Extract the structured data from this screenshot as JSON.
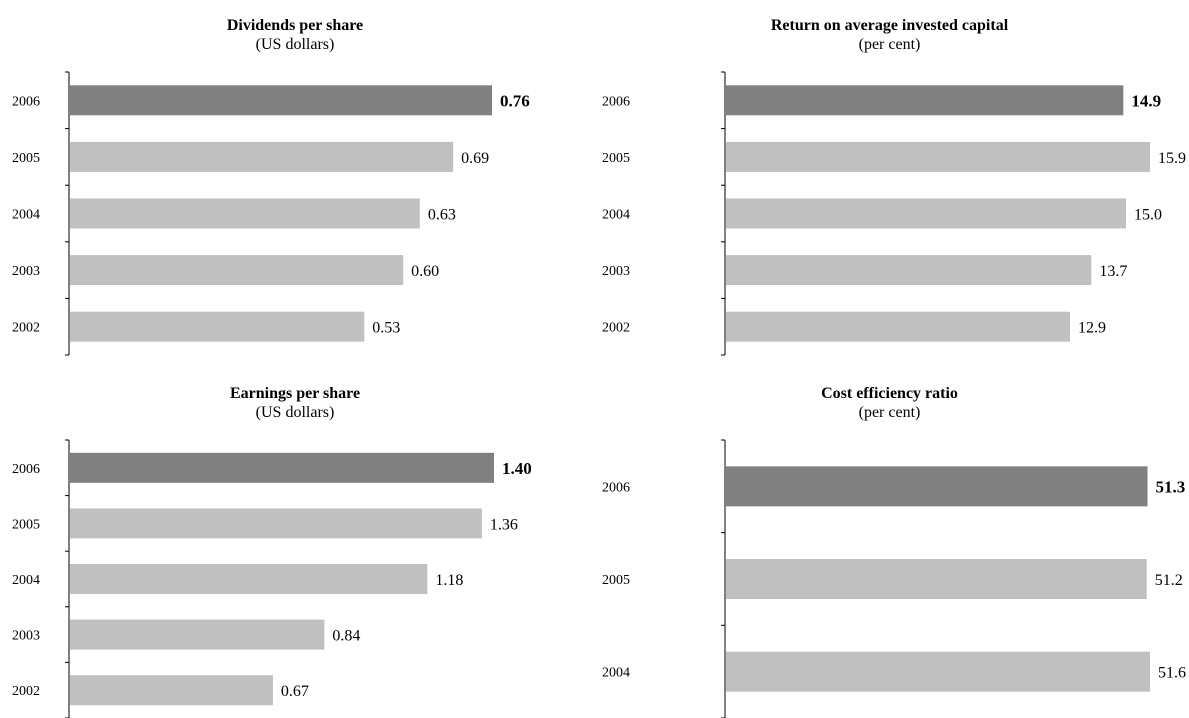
{
  "colors": {
    "highlight": "#808080",
    "regular": "#c0c0c0",
    "axis": "#000000"
  },
  "chart_data": [
    {
      "type": "bar",
      "title": "Dividends per share",
      "subtitle": "(US dollars)",
      "categories": [
        "2006",
        "2005",
        "2004",
        "2003",
        "2002"
      ],
      "values": [
        0.76,
        0.69,
        0.63,
        0.6,
        0.53
      ],
      "value_labels": [
        "0.76",
        "0.69",
        "0.63",
        "0.60",
        "0.53"
      ],
      "highlight_index": 0,
      "xlim": [
        0,
        0.76
      ],
      "grid": false,
      "legend": "none"
    },
    {
      "type": "bar",
      "title": "Return on average invested capital",
      "subtitle": "(per cent)",
      "categories": [
        "2006",
        "2005",
        "2004",
        "2003",
        "2002"
      ],
      "values": [
        14.9,
        15.9,
        15.0,
        13.7,
        12.9
      ],
      "value_labels": [
        "14.9",
        "15.9",
        "15.0",
        "13.7",
        "12.9"
      ],
      "highlight_index": 0,
      "xlim": [
        0,
        15.9
      ],
      "grid": false,
      "legend": "none"
    },
    {
      "type": "bar",
      "title": "Earnings per share",
      "subtitle": "(US dollars)",
      "categories": [
        "2006",
        "2005",
        "2004",
        "2003",
        "2002"
      ],
      "values": [
        1.4,
        1.36,
        1.18,
        0.84,
        0.67
      ],
      "value_labels": [
        "1.40",
        "1.36",
        "1.18",
        "0.84",
        "0.67"
      ],
      "highlight_index": 0,
      "xlim": [
        0,
        1.4
      ],
      "grid": false,
      "legend": "none"
    },
    {
      "type": "bar",
      "title": "Cost efficiency ratio",
      "subtitle": "(per cent)",
      "categories": [
        "2006",
        "2005",
        "2004"
      ],
      "values": [
        51.3,
        51.2,
        51.6
      ],
      "value_labels": [
        "51.3",
        "51.2",
        "51.6"
      ],
      "highlight_index": 0,
      "xlim": [
        0,
        51.6
      ],
      "grid": false,
      "legend": "none"
    }
  ]
}
